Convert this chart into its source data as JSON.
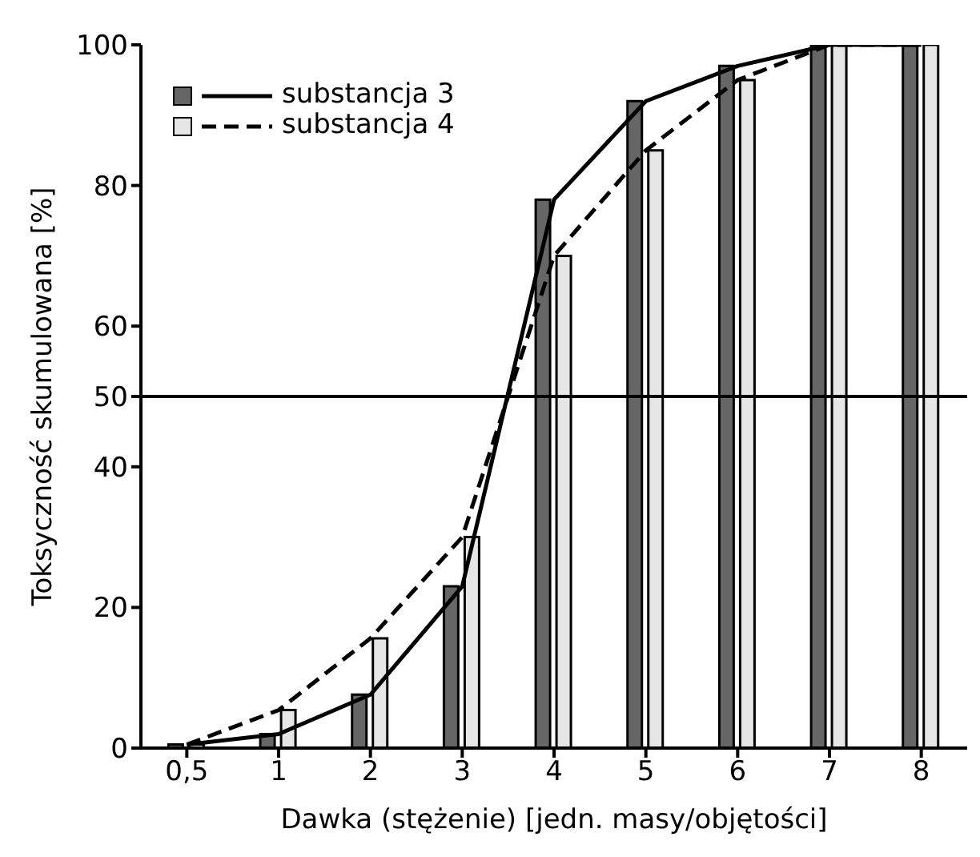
{
  "chart_data": {
    "type": "bar",
    "xlabel": "Dawka (stężenie) [jedn. masy/objętości]",
    "ylabel": "Toksyczność skumulowana [%]",
    "categories": [
      "0,5",
      "1",
      "2",
      "3",
      "4",
      "5",
      "6",
      "7",
      "8"
    ],
    "series": [
      {
        "name": "substancja 3",
        "color": "#666666",
        "values": [
          0.5,
          2,
          7.6,
          23,
          78,
          92,
          97,
          100,
          100
        ]
      },
      {
        "name": "substancja 4",
        "color": "#e6e6e6",
        "values": [
          0.5,
          5.4,
          15.6,
          30,
          70,
          85,
          95,
          100,
          100
        ]
      },
      {
        "type": "line",
        "color": "#000000",
        "line_style": "solid",
        "values": [
          0.5,
          2,
          7.6,
          23,
          78,
          92,
          97,
          100,
          100
        ]
      },
      {
        "type": "line",
        "color": "#000000",
        "line_style": "dashed",
        "values": [
          0.5,
          5.4,
          15.6,
          30,
          70,
          85,
          95,
          100,
          100
        ]
      }
    ],
    "ylim": [
      0,
      100
    ],
    "yticks": [
      0,
      20,
      40,
      50,
      60,
      80,
      100
    ],
    "ref_lines": [
      {
        "axis": "y",
        "value": 50,
        "color": "#000000"
      }
    ],
    "grid": false,
    "legend": "top left",
    "marker": "none"
  }
}
